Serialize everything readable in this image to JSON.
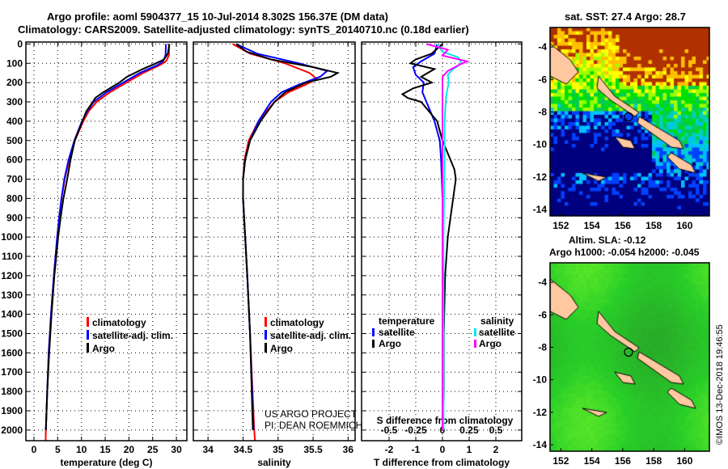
{
  "title_line1": "Argo profile: aoml 5904377_15 10-Jul-2014 8.302S 156.37E (DM data)",
  "title_line2": "Climatology: CARS2009. Satellite-adjusted climatology: synTS_20140710.nc (0.18d earlier)",
  "credit_line1": "US ARGO PROJECT",
  "credit_line2": "PI: DEAN ROEMMICH",
  "imos_stamp": "©IMOS 13-Dec-2018 19:46:55",
  "colors": {
    "climatology": "#ff0000",
    "satellite": "#0000ff",
    "argo": "#000000",
    "sal_satellite": "#00e5ee",
    "sal_argo": "#ff00ff",
    "land": "#ffc8a0"
  },
  "chart_data": [
    {
      "type": "line",
      "name": "temperature",
      "xlabel": "temperature (deg C)",
      "xlim": [
        -1.7,
        32.2
      ],
      "xticks": [
        0,
        5,
        10,
        15,
        20,
        25,
        30
      ],
      "ylim": [
        2055,
        -10
      ],
      "yticks": [
        0,
        100,
        200,
        300,
        400,
        500,
        600,
        700,
        800,
        900,
        1000,
        1100,
        1200,
        1300,
        1400,
        1500,
        1600,
        1700,
        1800,
        1900,
        2000
      ],
      "legend": [
        "climatology",
        "satellite-adj. clim.",
        "Argo"
      ],
      "grid": true,
      "series": [
        {
          "name": "climatology",
          "color": "#ff0000",
          "depth": [
            0,
            60,
            90,
            110,
            150,
            200,
            250,
            300,
            350,
            400,
            500,
            600,
            700,
            800,
            900,
            1000,
            1200,
            1400,
            1600,
            1800,
            2000,
            2055
          ],
          "values": [
            28.5,
            28.4,
            27.8,
            26.5,
            23,
            19.5,
            16,
            13.2,
            11.5,
            10.4,
            8.6,
            7.4,
            6.5,
            5.8,
            5.3,
            4.9,
            4.2,
            3.6,
            3.1,
            2.8,
            2.5,
            2.45
          ]
        },
        {
          "name": "satellite-adj. clim.",
          "color": "#0000ff",
          "depth": [
            0,
            60,
            90,
            110,
            150,
            200,
            250,
            300,
            350,
            400,
            500,
            600,
            700,
            800,
            900,
            1000,
            1200,
            1400,
            1600,
            1800,
            2000
          ],
          "values": [
            27.8,
            27.7,
            27.2,
            26,
            22.3,
            18.8,
            15.3,
            12.6,
            11.2,
            10.1,
            8.5,
            7.3,
            6.4,
            5.8,
            5.3,
            4.9,
            4.2,
            3.6,
            3.1,
            2.8,
            2.5
          ]
        },
        {
          "name": "Argo",
          "color": "#000000",
          "depth": [
            0,
            50,
            80,
            100,
            130,
            170,
            200,
            250,
            280,
            300,
            350,
            400,
            500,
            600,
            700,
            800,
            900,
            1000,
            1200,
            1400,
            1600,
            1800,
            2000
          ],
          "values": [
            28.5,
            28.2,
            27.4,
            25.7,
            22.9,
            19.6,
            18.0,
            14.6,
            12.9,
            12.4,
            11.0,
            10.2,
            8.6,
            7.7,
            7.0,
            6.2,
            5.6,
            5.1,
            4.3,
            3.7,
            3.2,
            2.8,
            2.5
          ]
        }
      ]
    },
    {
      "type": "line",
      "name": "salinity",
      "xlabel": "salinity",
      "xlim": [
        33.79,
        36.1
      ],
      "xticks": [
        34,
        34.5,
        35,
        35.5,
        36
      ],
      "ylim": [
        2055,
        -10
      ],
      "grid": true,
      "series": [
        {
          "name": "climatology",
          "color": "#ff0000",
          "depth": [
            0,
            50,
            100,
            150,
            180,
            210,
            250,
            300,
            400,
            500,
            600,
            700,
            800,
            1000,
            1200,
            1500,
            2000,
            2055
          ],
          "values": [
            34.35,
            34.6,
            35.1,
            35.45,
            35.55,
            35.4,
            35.15,
            34.95,
            34.72,
            34.58,
            34.52,
            34.5,
            34.5,
            34.53,
            34.56,
            34.6,
            34.66,
            34.67
          ]
        },
        {
          "name": "satellite-adj. clim.",
          "color": "#0000ff",
          "depth": [
            0,
            50,
            100,
            140,
            170,
            210,
            250,
            300,
            400,
            500,
            600,
            700,
            800,
            1000,
            1200,
            1500,
            2000
          ],
          "values": [
            34.4,
            34.7,
            35.3,
            35.7,
            35.6,
            35.3,
            35.05,
            34.9,
            34.72,
            34.6,
            34.53,
            34.5,
            34.5,
            34.53,
            34.56,
            34.6,
            34.65
          ]
        },
        {
          "name": "Argo",
          "color": "#000000",
          "depth": [
            0,
            40,
            80,
            120,
            150,
            170,
            200,
            250,
            300,
            400,
            500,
            600,
            700,
            800,
            1000,
            1200,
            1500,
            2000
          ],
          "values": [
            34.4,
            34.55,
            34.9,
            35.5,
            35.85,
            35.75,
            35.4,
            35.1,
            34.95,
            34.75,
            34.6,
            34.53,
            34.5,
            34.5,
            34.53,
            34.56,
            34.6,
            34.64
          ]
        }
      ]
    },
    {
      "type": "line",
      "name": "differences",
      "xlabel": "T difference from climatology",
      "xlim": [
        -3.03,
        2.97
      ],
      "xticks": [
        -2,
        -1,
        0,
        1,
        2
      ],
      "x2label": "S difference from climatology",
      "x2lim": [
        -0.7575,
        0.7425
      ],
      "x2ticks": [
        -0.5,
        -0.25,
        0,
        0.25,
        0.5
      ],
      "x2ticklabels": [
        "-0.5",
        "-0.25",
        "0",
        "0.25",
        "0.5"
      ],
      "ylim": [
        2055,
        -10
      ],
      "legend_temperature": {
        "title": "temperature",
        "items": [
          "satellite",
          "Argo"
        ]
      },
      "legend_salinity": {
        "title": "salinity",
        "items": [
          "satellite",
          "Argo"
        ]
      },
      "grid": true,
      "series": [
        {
          "name": "temperature satellite",
          "axis": "T",
          "color": "#0000ff",
          "depth": [
            0,
            50,
            90,
            120,
            160,
            200,
            250,
            300,
            400,
            500,
            600,
            800,
            1000,
            1500,
            2000
          ],
          "values": [
            -0.2,
            -0.3,
            -0.8,
            -1.1,
            -1.0,
            -0.7,
            -0.75,
            -0.6,
            -0.3,
            -0.1,
            -0.05,
            0,
            0,
            0,
            0
          ]
        },
        {
          "name": "temperature Argo",
          "axis": "T",
          "color": "#000000",
          "depth": [
            0,
            50,
            80,
            100,
            130,
            170,
            200,
            230,
            260,
            280,
            300,
            350,
            400,
            500,
            600,
            650,
            700,
            800,
            900,
            1000,
            1200,
            1500,
            1800,
            2000
          ],
          "values": [
            0,
            -0.4,
            -1.0,
            -1.2,
            -0.3,
            -0.8,
            -0.4,
            -1.1,
            -1.5,
            -1.3,
            -0.8,
            -0.5,
            -0.2,
            0,
            0.3,
            0.45,
            0.5,
            0.4,
            0.3,
            0.2,
            0.1,
            0.05,
            0.05,
            0
          ]
        },
        {
          "name": "salinity satellite",
          "axis": "S",
          "color": "#00e5ee",
          "depth": [
            0,
            40,
            70,
            100,
            130,
            160,
            200,
            250,
            300,
            400,
            600,
            1000,
            2000
          ],
          "values": [
            -0.05,
            0.0,
            0.15,
            0.18,
            0.1,
            0.05,
            0.06,
            0.04,
            0.03,
            0.02,
            0.02,
            0.01,
            0.01
          ]
        },
        {
          "name": "salinity Argo",
          "axis": "S",
          "color": "#ff00ff",
          "depth": [
            0,
            30,
            60,
            90,
            110,
            140,
            170,
            200,
            300,
            500,
            1000,
            2000
          ],
          "values": [
            -0.15,
            0.05,
            0.0,
            0.23,
            0.15,
            0.05,
            0.0,
            0.0,
            0.0,
            0.0,
            0.0,
            0.0
          ]
        }
      ]
    }
  ],
  "maps": [
    {
      "title": "sat. SST: 27.4 Argo: 28.7",
      "lon_ticks": [
        152,
        154,
        156,
        158,
        160
      ],
      "lat_ticks": [
        -4,
        -6,
        -8,
        -10,
        -12,
        -14
      ],
      "lon_range": [
        151.3,
        161.6
      ],
      "lat_range": [
        -2.8,
        -14.4
      ]
    },
    {
      "title_line1": "Altim. SLA: -0.12",
      "title_line2": "Argo h1000: -0.054 h2000: -0.045",
      "lon_ticks": [
        152,
        154,
        156,
        158,
        160
      ],
      "lat_ticks": [
        -4,
        -6,
        -8,
        -10,
        -12,
        -14
      ],
      "lon_range": [
        151.3,
        161.6
      ],
      "lat_range": [
        -2.8,
        -14.4
      ]
    }
  ],
  "profile_location": {
    "lon": 156.37,
    "lat": -8.302
  }
}
